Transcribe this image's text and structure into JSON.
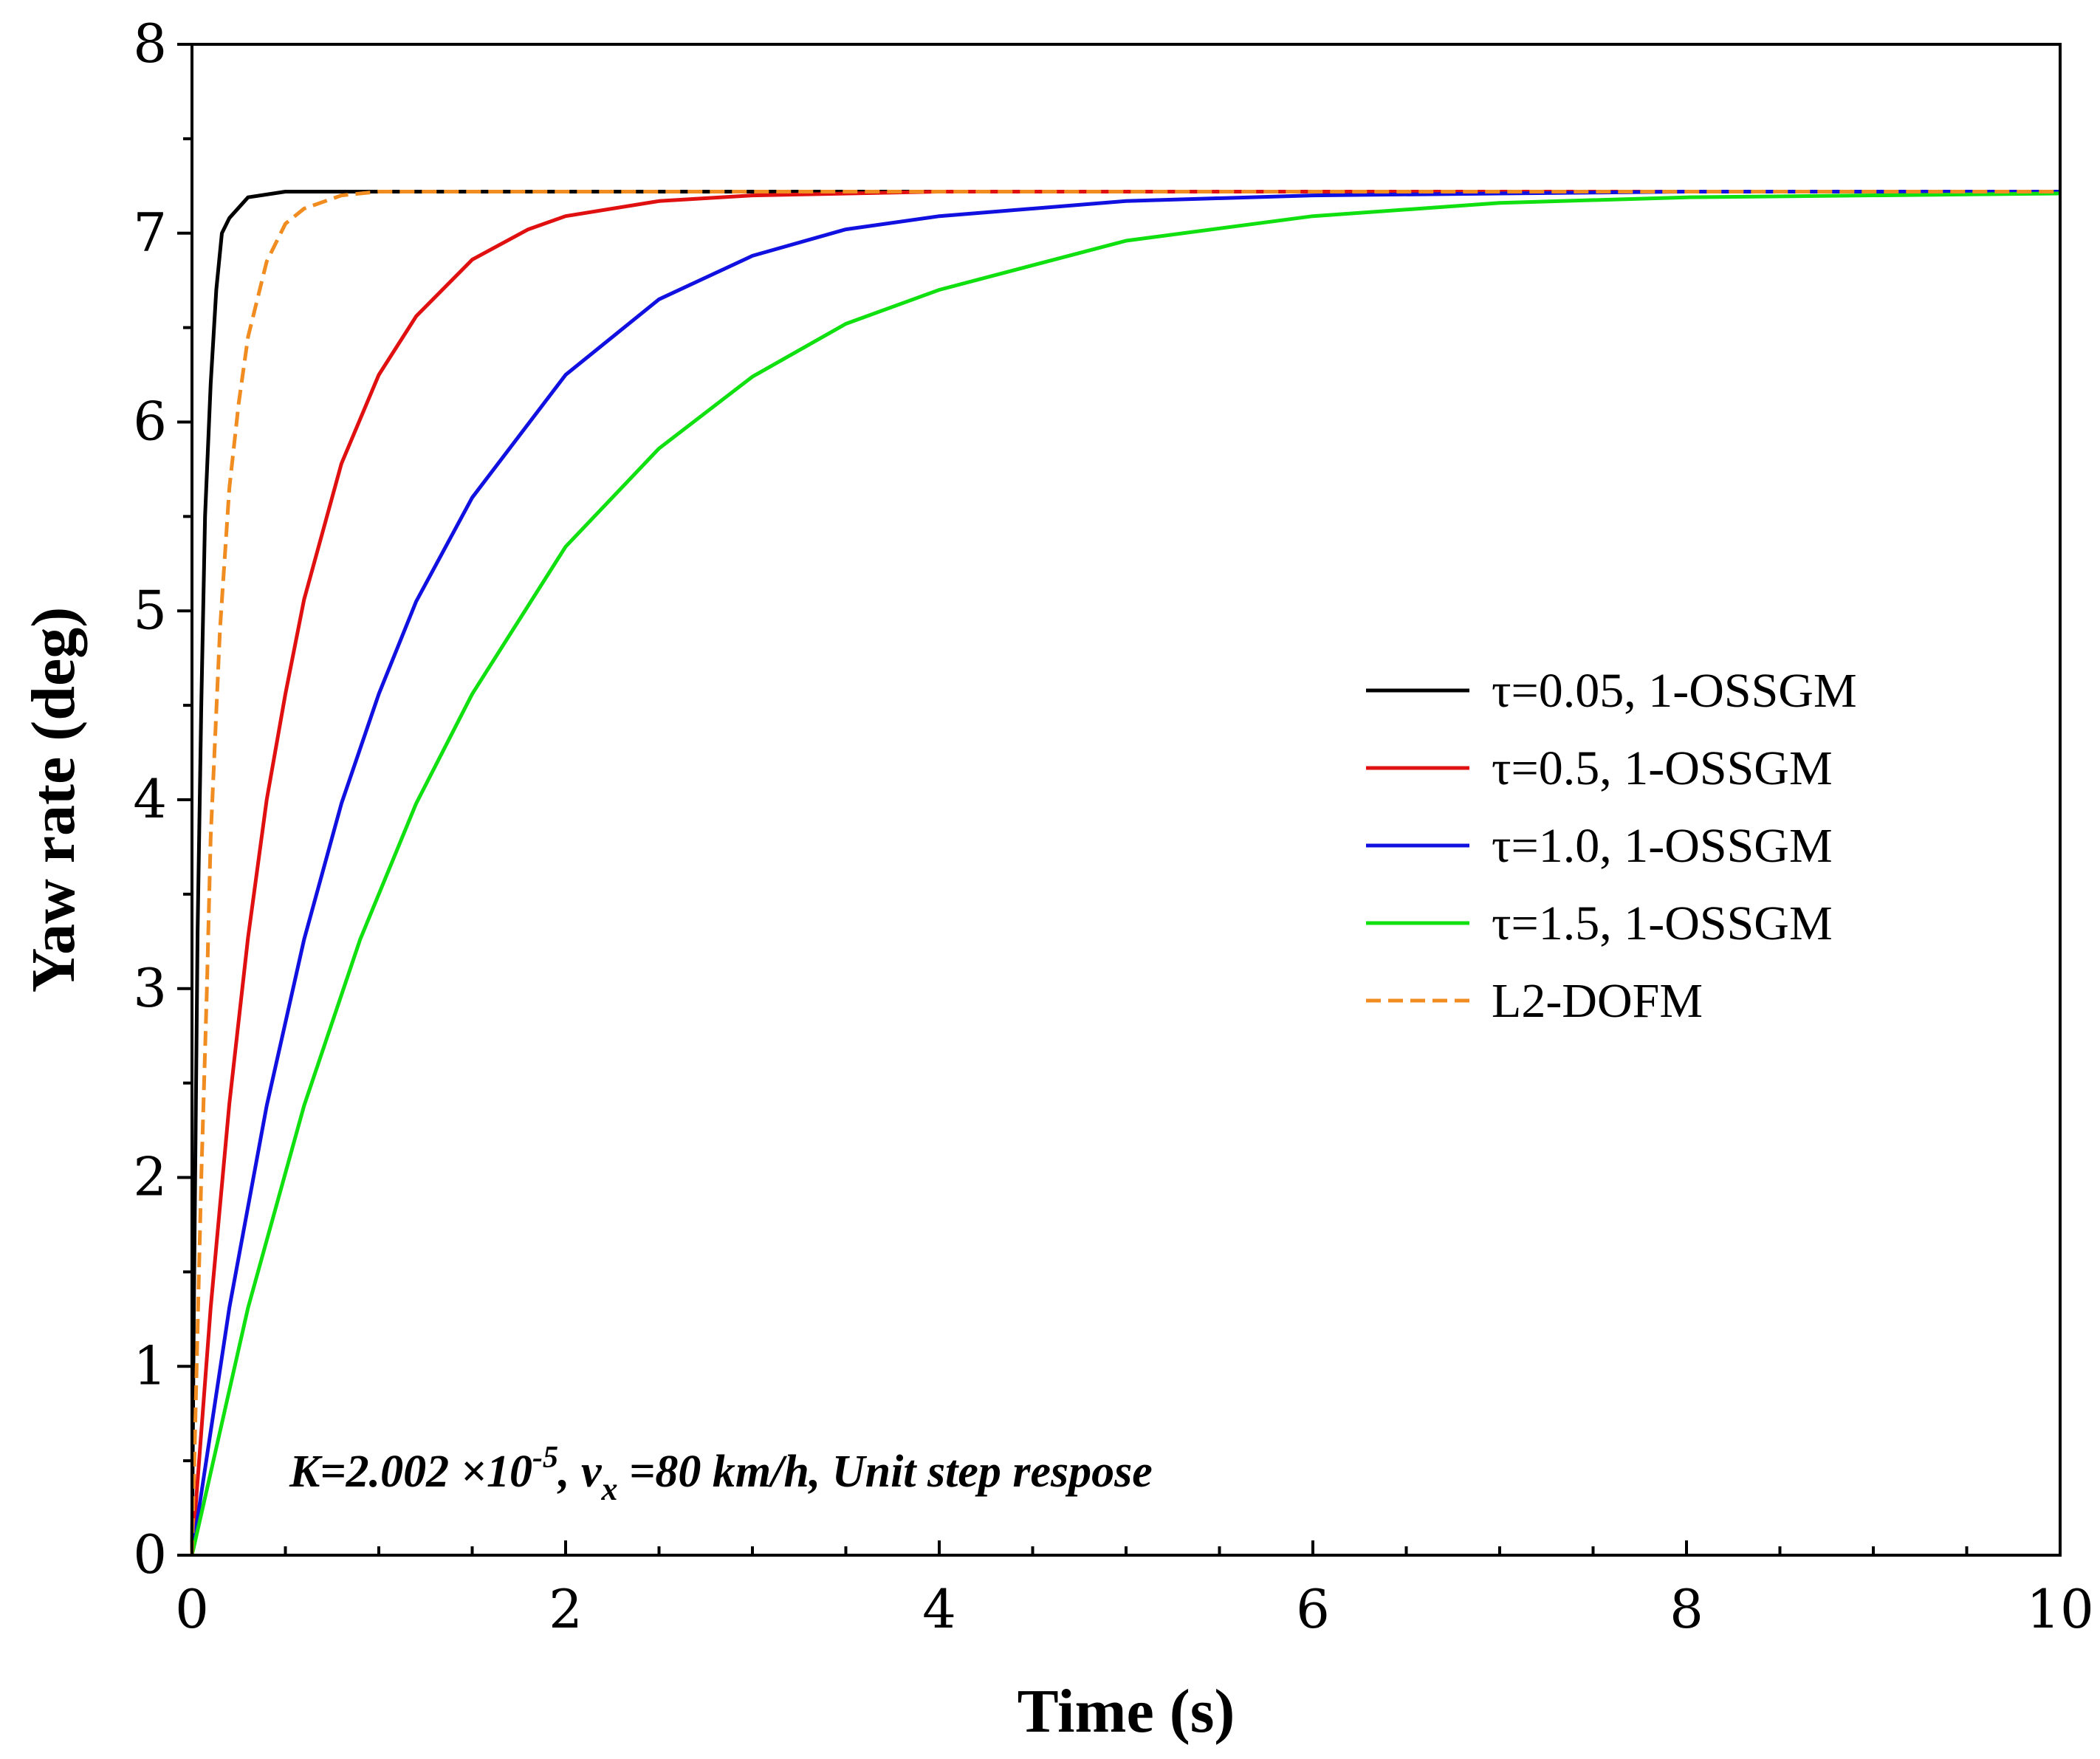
{
  "chart_data": {
    "type": "line",
    "title": "",
    "xlabel": "Time (s)",
    "ylabel": "Yaw rate (deg)",
    "xlim": [
      0,
      10
    ],
    "ylim": [
      0,
      8
    ],
    "xticks": [
      0,
      2,
      4,
      6,
      8,
      10
    ],
    "yticks": [
      0,
      1,
      2,
      3,
      4,
      5,
      6,
      7,
      8
    ],
    "xtick_labels": [
      "0",
      "2",
      "4",
      "6",
      "8",
      "10"
    ],
    "ytick_labels": [
      "0",
      "1",
      "2",
      "3",
      "4",
      "5",
      "6",
      "7",
      "8"
    ],
    "grid": false,
    "legend_position": "center-right",
    "steady_state": 7.22,
    "annotation": {
      "prefix": "K=2.002 ×10",
      "exponent": "-5",
      "mid1": ", v",
      "subscript": "x",
      "suffix": " =80 km/h, Unit step respose"
    },
    "series": [
      {
        "name": "τ=0.05, 1-OSSGM",
        "color": "#000000",
        "dash": "solid",
        "x": [
          0,
          0.01,
          0.03,
          0.05,
          0.07,
          0.1,
          0.13,
          0.16,
          0.2,
          0.3,
          0.5,
          1,
          2,
          4,
          6,
          8,
          10
        ],
        "y": [
          0,
          1.3,
          3.3,
          4.5,
          5.5,
          6.2,
          6.7,
          7.0,
          7.08,
          7.19,
          7.22,
          7.22,
          7.22,
          7.22,
          7.22,
          7.22,
          7.22
        ]
      },
      {
        "name": "τ=0.5, 1-OSSGM",
        "color": "#e01010",
        "dash": "solid",
        "x": [
          0,
          0.1,
          0.2,
          0.3,
          0.4,
          0.5,
          0.6,
          0.8,
          1.0,
          1.2,
          1.5,
          1.8,
          2.0,
          2.5,
          3.0,
          4.0,
          6,
          8,
          10
        ],
        "y": [
          0,
          1.31,
          2.39,
          3.27,
          4.0,
          4.56,
          5.06,
          5.78,
          6.25,
          6.56,
          6.86,
          7.02,
          7.09,
          7.17,
          7.2,
          7.22,
          7.22,
          7.22,
          7.22
        ]
      },
      {
        "name": "τ=1.0, 1-OSSGM",
        "color": "#1010e0",
        "dash": "solid",
        "x": [
          0,
          0.2,
          0.4,
          0.6,
          0.8,
          1.0,
          1.2,
          1.5,
          2.0,
          2.5,
          3.0,
          3.5,
          4.0,
          5.0,
          6.0,
          8.0,
          10
        ],
        "y": [
          0,
          1.31,
          2.38,
          3.26,
          3.98,
          4.56,
          5.05,
          5.6,
          6.25,
          6.65,
          6.88,
          7.02,
          7.09,
          7.17,
          7.2,
          7.22,
          7.22
        ]
      },
      {
        "name": "τ=1.5, 1-OSSGM",
        "color": "#10e010",
        "dash": "solid",
        "x": [
          0,
          0.3,
          0.6,
          0.9,
          1.2,
          1.5,
          2.0,
          2.5,
          3.0,
          3.5,
          4.0,
          5.0,
          6.0,
          7.0,
          8.0,
          10
        ],
        "y": [
          0,
          1.31,
          2.38,
          3.26,
          3.98,
          4.56,
          5.34,
          5.86,
          6.24,
          6.52,
          6.7,
          6.96,
          7.09,
          7.16,
          7.19,
          7.21
        ]
      },
      {
        "name": "L2-DOFM",
        "color": "#f08c20",
        "dash": "dashed",
        "x": [
          0,
          0.02,
          0.05,
          0.08,
          0.1,
          0.15,
          0.2,
          0.25,
          0.3,
          0.4,
          0.5,
          0.6,
          0.8,
          1.0,
          1.5,
          2,
          4,
          6,
          8,
          10
        ],
        "y": [
          0,
          0.8,
          2.0,
          3.0,
          3.8,
          4.9,
          5.65,
          6.1,
          6.45,
          6.85,
          7.05,
          7.13,
          7.2,
          7.22,
          7.22,
          7.22,
          7.22,
          7.22,
          7.22,
          7.22
        ]
      }
    ]
  }
}
